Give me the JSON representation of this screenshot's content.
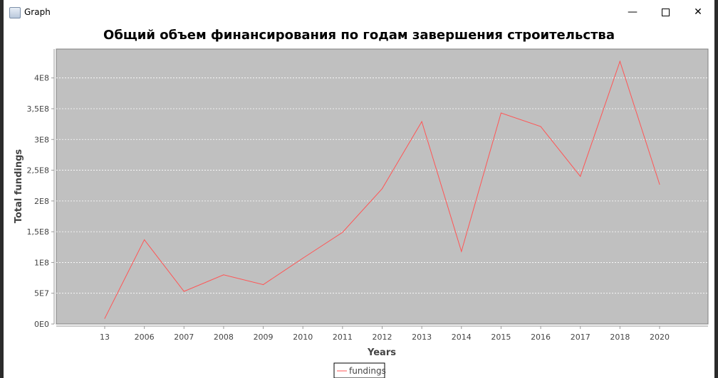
{
  "window": {
    "title": "Graph",
    "icon": "java-icon",
    "controls": [
      "minimize-icon",
      "maximize-icon",
      "close-icon"
    ]
  },
  "chart_data": {
    "type": "line",
    "title": "Общий объем финансирования по годам завершения строительства",
    "xlabel": "Years",
    "ylabel": "Total fundings",
    "categories": [
      "13",
      "2006",
      "2007",
      "2008",
      "2009",
      "2010",
      "2011",
      "2012",
      "2013",
      "2014",
      "2015",
      "2016",
      "2017",
      "2018",
      "2020"
    ],
    "series": [
      {
        "name": "fundings",
        "values": [
          9000000,
          137000000,
          53000000,
          80000000,
          64000000,
          107000000,
          149000000,
          220000000,
          329000000,
          118000000,
          343000000,
          321000000,
          240000000,
          427000000,
          227000000
        ]
      }
    ],
    "yticks": [
      {
        "v": 0,
        "label": "0E0"
      },
      {
        "v": 50000000,
        "label": "5E7"
      },
      {
        "v": 100000000,
        "label": "1E8"
      },
      {
        "v": 150000000,
        "label": "1,5E8"
      },
      {
        "v": 200000000,
        "label": "2E8"
      },
      {
        "v": 250000000,
        "label": "2,5E8"
      },
      {
        "v": 300000000,
        "label": "3E8"
      },
      {
        "v": 350000000,
        "label": "3,5E8"
      },
      {
        "v": 400000000,
        "label": "4E8"
      }
    ],
    "ylim": [
      0,
      447000000
    ],
    "grid": true,
    "legend": "bottom",
    "colors": {
      "line": "#ff5555",
      "plot_bg": "#c0c0c0",
      "grid": "#ffffff"
    }
  }
}
